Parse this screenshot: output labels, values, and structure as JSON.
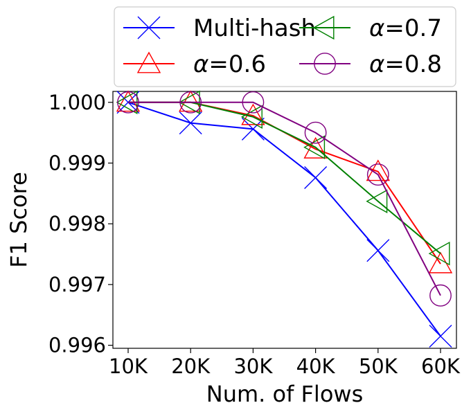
{
  "chart_data": {
    "type": "line",
    "xlabel": "Num. of Flows",
    "ylabel": "F1 Score",
    "categories": [
      "10K",
      "20K",
      "30K",
      "40K",
      "50K",
      "60K"
    ],
    "ylim": [
      0.99595,
      1.00018
    ],
    "yticks": [
      0.996,
      0.997,
      0.998,
      0.999,
      1.0
    ],
    "ytick_labels": [
      "0.996",
      "0.997",
      "0.998",
      "0.999",
      "1.000"
    ],
    "grid": false,
    "legend_position": "top",
    "series": [
      {
        "name": "Multi-hash",
        "legend_prefix": "",
        "legend_value": "Multi-hash",
        "color": "#0000ff",
        "marker": "x",
        "values": [
          1.0,
          0.99966,
          0.99956,
          0.99876,
          0.99756,
          0.99615
        ]
      },
      {
        "name": "α=0.6",
        "legend_prefix": "α",
        "legend_value": "=0.6",
        "color": "#ff0000",
        "marker": "triangle-up",
        "values": [
          1.0,
          1.0,
          0.99978,
          0.99923,
          0.99886,
          0.99734
        ]
      },
      {
        "name": "α=0.7",
        "legend_prefix": "α",
        "legend_value": "=0.7",
        "color": "#008000",
        "marker": "triangle-left",
        "values": [
          1.0,
          1.0,
          0.99976,
          0.99926,
          0.99837,
          0.99751
        ]
      },
      {
        "name": "α=0.8",
        "legend_prefix": "α",
        "legend_value": "=0.8",
        "color": "#800080",
        "marker": "circle",
        "values": [
          1.0,
          1.0,
          1.0,
          0.9995,
          0.99881,
          0.99682
        ]
      }
    ]
  }
}
